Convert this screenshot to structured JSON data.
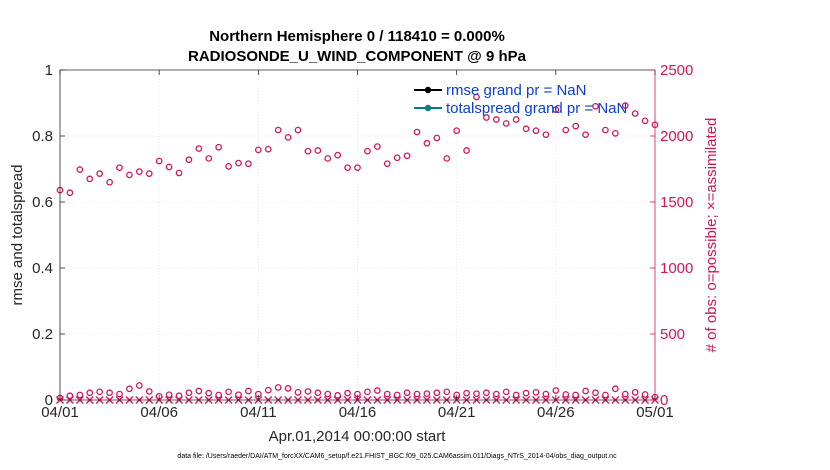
{
  "chart_data": {
    "type": "scatter",
    "title_line1": "Northern Hemisphere 0 / 118410 = 0.000%",
    "title_line2": "RADIOSONDE_U_WIND_COMPONENT @ 9 hPa",
    "xlabel": "Apr.01,2014 00:00:00 start",
    "ylabel_left": "rmse and totalspread",
    "ylabel_right": "# of obs: o=possible; ×=assimilated",
    "x_ticks": [
      "04/01",
      "04/06",
      "04/11",
      "04/16",
      "04/21",
      "04/26",
      "05/01"
    ],
    "x_range_days": [
      0,
      30
    ],
    "y_left_ticks": [
      "0",
      "0.2",
      "0.4",
      "0.6",
      "0.8",
      "1"
    ],
    "y_left_range": [
      0,
      1
    ],
    "y_right_ticks": [
      "0",
      "500",
      "1000",
      "1500",
      "2000",
      "2500"
    ],
    "y_right_range": [
      0,
      2500
    ],
    "legend": [
      "rmse grand pr = NaN",
      "totalspread grand pr = NaN"
    ],
    "footer": "data file: /Users/raeder/DAI/ATM_forcXX/CAM6_setup/f.e21.FHIST_BGC.f09_025.CAM6assim.011/Diags_NTrS_2014-04/obs_diag_output.nc",
    "colors": {
      "rmse": "#000000",
      "totalspread": "#008080",
      "obs": "#d4145a",
      "legend_text": "#0b3fd6"
    },
    "series": [
      {
        "name": "possible obs (upper level)",
        "x_days": [
          0,
          0.5,
          1,
          1.5,
          2,
          2.5,
          3,
          3.5,
          4,
          4.5,
          5,
          5.5,
          6,
          6.5,
          7,
          7.5,
          8,
          8.5,
          9,
          9.5,
          10,
          10.5,
          11,
          11.5,
          12,
          12.5,
          13,
          13.5,
          14,
          14.5,
          15,
          15.5,
          16,
          16.5,
          17,
          17.5,
          18,
          18.5,
          19,
          19.5,
          20,
          20.5,
          21,
          21.5,
          22,
          22.5,
          23,
          23.5,
          24,
          24.5,
          25,
          25.5,
          26,
          26.5,
          27,
          27.5,
          28,
          28.5,
          29,
          29.5,
          30
        ],
        "values": [
          1590,
          1570,
          1745,
          1675,
          1715,
          1650,
          1760,
          1705,
          1730,
          1715,
          1810,
          1765,
          1720,
          1820,
          1905,
          1830,
          1915,
          1770,
          1795,
          1790,
          1895,
          1900,
          2045,
          1990,
          2045,
          1885,
          1890,
          1830,
          1855,
          1760,
          1760,
          1885,
          1920,
          1790,
          1835,
          1850,
          2030,
          1945,
          1985,
          1830,
          2040,
          1890,
          2295,
          2140,
          2125,
          2095,
          2125,
          2055,
          2040,
          2010,
          2200,
          2045,
          2075,
          2010,
          2225,
          2045,
          2020,
          2230,
          2170,
          2115,
          2085
        ]
      },
      {
        "name": "possible obs (lower level)",
        "x_days": [
          0,
          0.5,
          1,
          1.5,
          2,
          2.5,
          3,
          3.5,
          4,
          4.5,
          5,
          5.5,
          6,
          6.5,
          7,
          7.5,
          8,
          8.5,
          9,
          9.5,
          10,
          10.5,
          11,
          11.5,
          12,
          12.5,
          13,
          13.5,
          14,
          14.5,
          15,
          15.5,
          16,
          16.5,
          17,
          17.5,
          18,
          18.5,
          19,
          19.5,
          20,
          20.5,
          21,
          21.5,
          22,
          22.5,
          23,
          23.5,
          24,
          24.5,
          25,
          25.5,
          26,
          26.5,
          27,
          27.5,
          28,
          28.5,
          29,
          29.5,
          30
        ],
        "values": [
          15,
          32,
          38,
          55,
          62,
          55,
          45,
          85,
          110,
          65,
          28,
          40,
          32,
          55,
          68,
          52,
          38,
          62,
          40,
          68,
          45,
          75,
          95,
          88,
          58,
          65,
          55,
          45,
          35,
          52,
          45,
          62,
          72,
          45,
          38,
          55,
          45,
          48,
          55,
          62,
          38,
          52,
          48,
          55,
          45,
          62,
          38,
          52,
          58,
          45,
          72,
          42,
          38,
          68,
          55,
          38,
          85,
          45,
          58,
          42,
          22
        ]
      },
      {
        "name": "assimilated obs",
        "x_days": [
          0,
          0.5,
          1,
          1.5,
          2,
          2.5,
          3,
          3.5,
          4,
          4.5,
          5,
          5.5,
          6,
          6.5,
          7,
          7.5,
          8,
          8.5,
          9,
          9.5,
          10,
          10.5,
          11,
          11.5,
          12,
          12.5,
          13,
          13.5,
          14,
          14.5,
          15,
          15.5,
          16,
          16.5,
          17,
          17.5,
          18,
          18.5,
          19,
          19.5,
          20,
          20.5,
          21,
          21.5,
          22,
          22.5,
          23,
          23.5,
          24,
          24.5,
          25,
          25.5,
          26,
          26.5,
          27,
          27.5,
          28,
          28.5,
          29,
          29.5,
          30
        ],
        "values": [
          0,
          0,
          0,
          0,
          0,
          0,
          0,
          0,
          0,
          0,
          0,
          0,
          0,
          0,
          0,
          0,
          0,
          0,
          0,
          0,
          0,
          0,
          0,
          0,
          0,
          0,
          0,
          0,
          0,
          0,
          0,
          0,
          0,
          0,
          0,
          0,
          0,
          0,
          0,
          0,
          0,
          0,
          0,
          0,
          0,
          0,
          0,
          0,
          0,
          0,
          0,
          0,
          0,
          0,
          0,
          0,
          0,
          0,
          0,
          0,
          0
        ]
      }
    ]
  }
}
